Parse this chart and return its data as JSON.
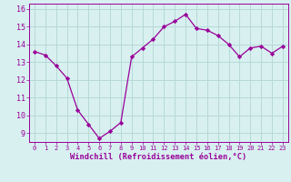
{
  "x": [
    0,
    1,
    2,
    3,
    4,
    5,
    6,
    7,
    8,
    9,
    10,
    11,
    12,
    13,
    14,
    15,
    16,
    17,
    18,
    19,
    20,
    21,
    22,
    23
  ],
  "y": [
    13.6,
    13.4,
    12.8,
    12.1,
    10.3,
    9.5,
    8.7,
    9.1,
    9.6,
    13.3,
    13.8,
    14.3,
    15.0,
    15.3,
    15.7,
    14.9,
    14.8,
    14.5,
    14.0,
    13.3,
    13.8,
    13.9,
    13.5,
    13.9
  ],
  "line_color": "#990099",
  "marker": "D",
  "marker_size": 2.2,
  "bg_color": "#d8f0f0",
  "grid_color": "#b8d8d8",
  "xlabel": "Windchill (Refroidissement éolien,°C)",
  "xlabel_color": "#990099",
  "tick_color": "#990099",
  "ylim": [
    8.5,
    16.3
  ],
  "xlim": [
    -0.5,
    23.5
  ],
  "yticks": [
    9,
    10,
    11,
    12,
    13,
    14,
    15,
    16
  ],
  "xticks": [
    0,
    1,
    2,
    3,
    4,
    5,
    6,
    7,
    8,
    9,
    10,
    11,
    12,
    13,
    14,
    15,
    16,
    17,
    18,
    19,
    20,
    21,
    22,
    23
  ],
  "xtick_labels": [
    "0",
    "1",
    "2",
    "3",
    "4",
    "5",
    "6",
    "7",
    "8",
    "9",
    "10",
    "11",
    "12",
    "13",
    "14",
    "15",
    "16",
    "17",
    "18",
    "19",
    "20",
    "21",
    "22",
    "23"
  ]
}
